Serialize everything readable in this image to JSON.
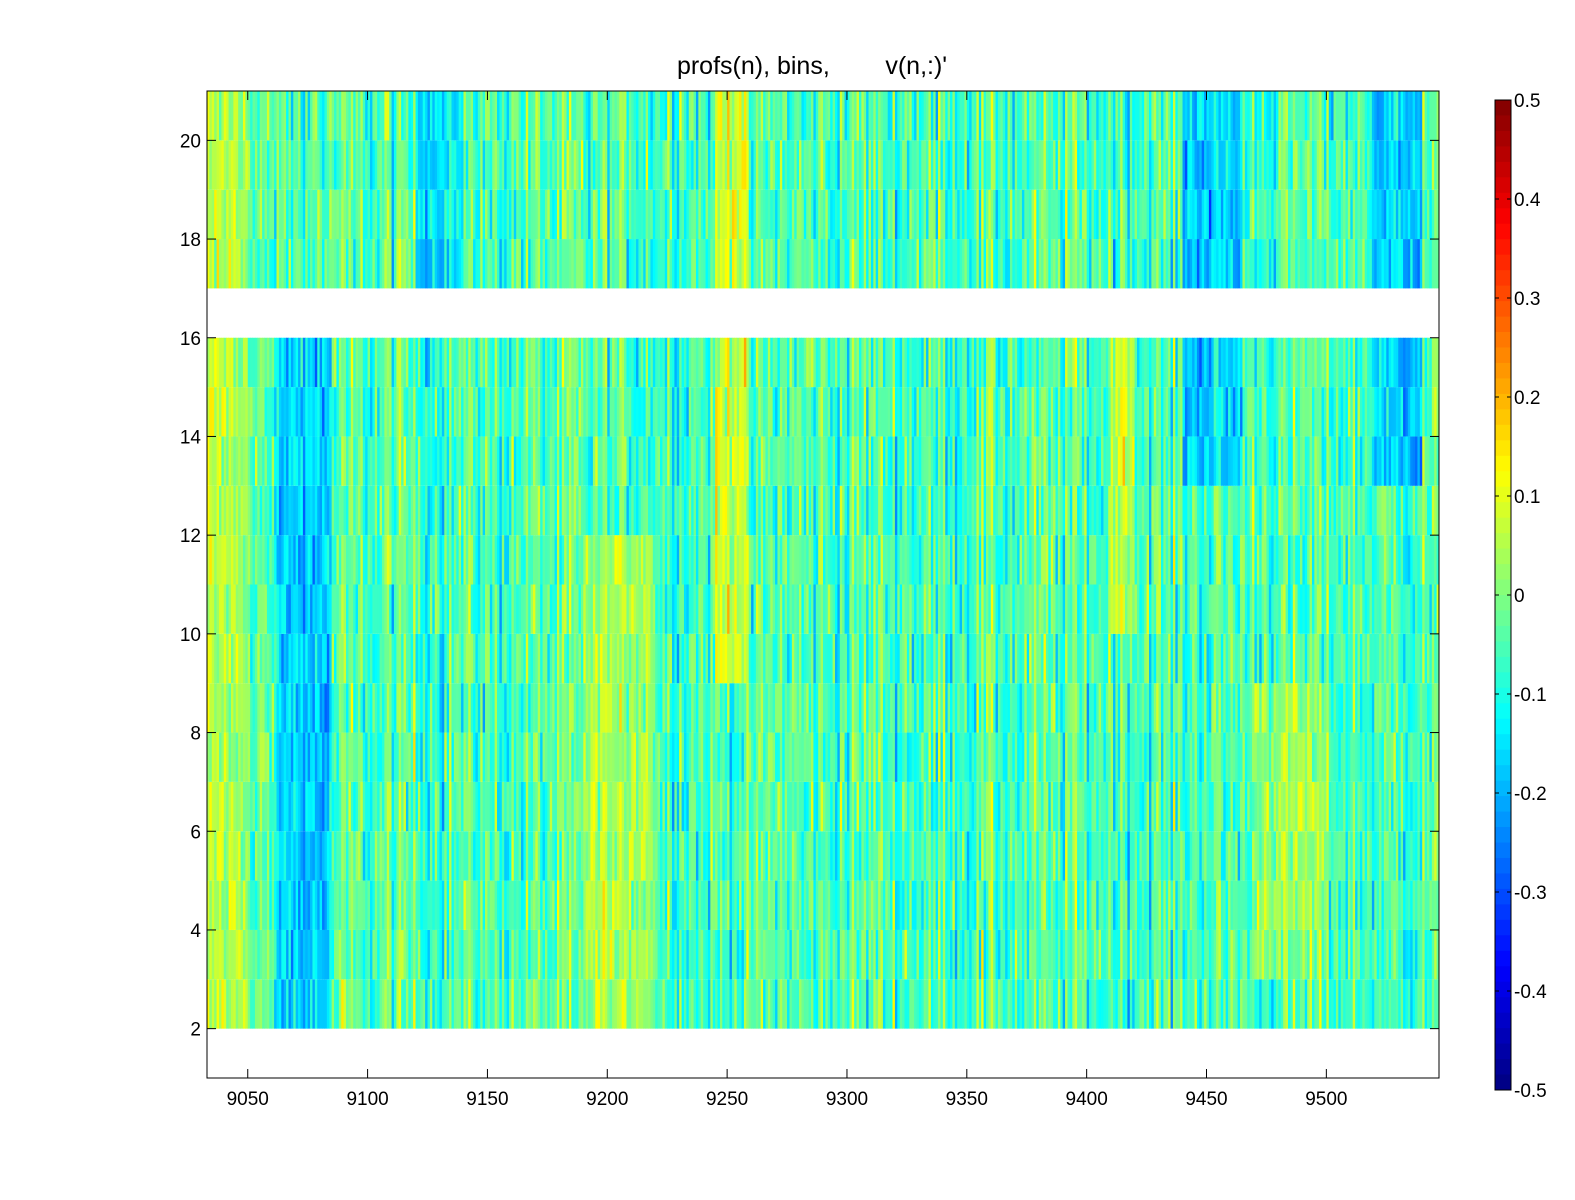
{
  "chart_data": {
    "type": "heatmap",
    "title": "profs(n), bins,        v(n,:)'",
    "xlabel": "",
    "ylabel": "",
    "xlim": [
      9033,
      9547
    ],
    "ylim": [
      1,
      21
    ],
    "x_ticks": [
      "9050",
      "9100",
      "9150",
      "9200",
      "9250",
      "9300",
      "9350",
      "9400",
      "9450",
      "9500"
    ],
    "y_ticks": [
      "2",
      "4",
      "6",
      "8",
      "10",
      "12",
      "14",
      "16",
      "18",
      "20"
    ],
    "colorbar": {
      "clim": [
        -0.5,
        0.5
      ],
      "ticks": [
        "0.5",
        "0.4",
        "0.3",
        "0.2",
        "0.1",
        "0",
        "-0.1",
        "-0.2",
        "-0.3",
        "-0.4",
        "-0.5"
      ],
      "colormap": "jet"
    },
    "bin_rows": [
      2,
      3,
      4,
      5,
      6,
      7,
      8,
      9,
      10,
      11,
      12,
      13,
      14,
      15,
      17,
      18,
      19,
      20
    ],
    "missing_rows": [
      16
    ],
    "profile_range": [
      9033,
      9547
    ],
    "value_range_observed": [
      -0.4,
      0.3
    ],
    "dominant_value": -0.05,
    "features": [
      {
        "profiles": [
          9033,
          9050
        ],
        "bins": [
          2,
          21
        ],
        "value": 0.12
      },
      {
        "profiles": [
          9062,
          9085
        ],
        "bins": [
          2,
          16
        ],
        "value": -0.25
      },
      {
        "profiles": [
          9120,
          9140
        ],
        "bins": [
          17,
          21
        ],
        "value": -0.2
      },
      {
        "profiles": [
          9190,
          9220
        ],
        "bins": [
          2,
          12
        ],
        "value": 0.1
      },
      {
        "profiles": [
          9245,
          9258
        ],
        "bins": [
          9,
          21
        ],
        "value": 0.18
      },
      {
        "profiles": [
          9410,
          9420
        ],
        "bins": [
          10,
          16
        ],
        "value": 0.15
      },
      {
        "profiles": [
          9440,
          9465
        ],
        "bins": [
          13,
          21
        ],
        "value": -0.25
      },
      {
        "profiles": [
          9520,
          9540
        ],
        "bins": [
          13,
          21
        ],
        "value": -0.25
      },
      {
        "profiles": [
          9470,
          9500
        ],
        "bins": [
          3,
          9
        ],
        "value": 0.08
      }
    ]
  }
}
